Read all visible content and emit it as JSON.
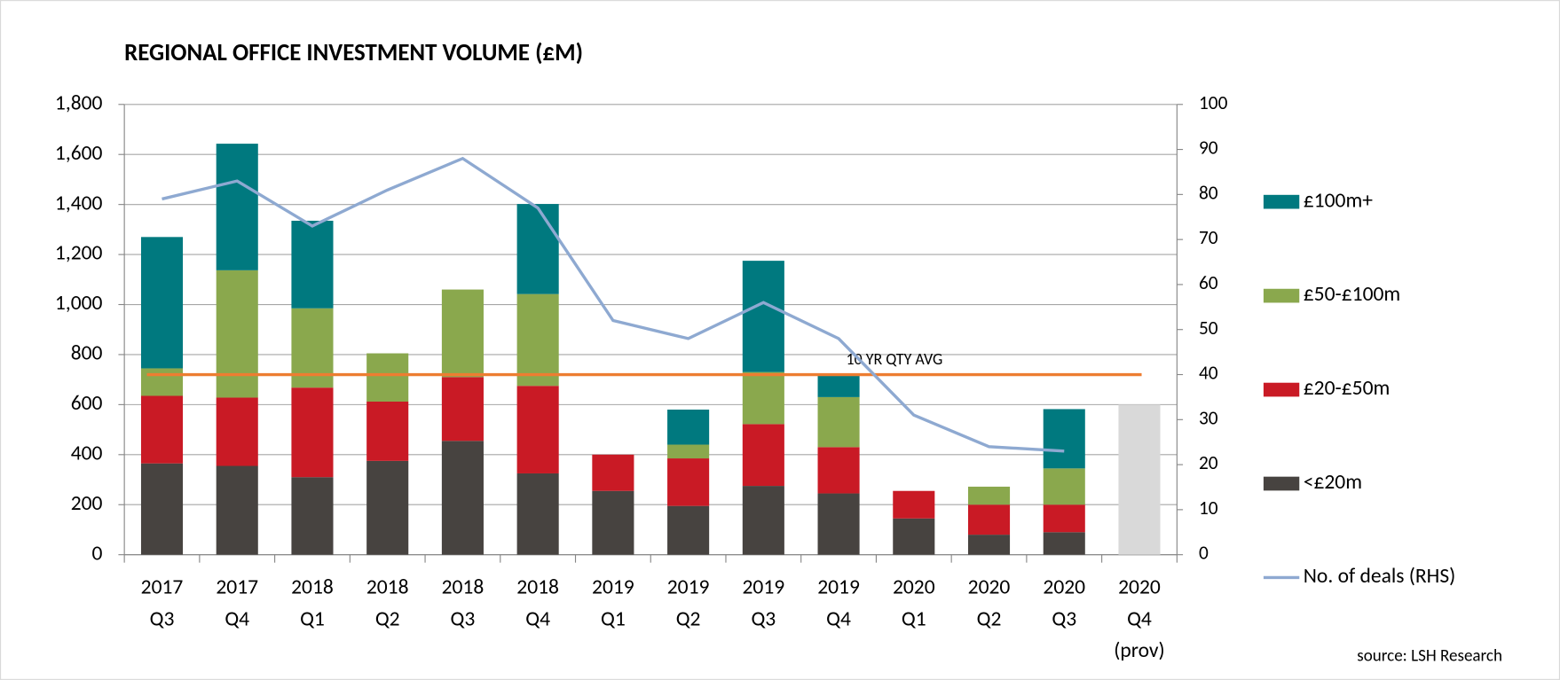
{
  "chart_data": {
    "type": "bar",
    "stacked": true,
    "title": "REGIONAL OFFICE INVESTMENT VOLUME (£M)",
    "categories": [
      [
        "2017",
        "Q3"
      ],
      [
        "2017",
        "Q4"
      ],
      [
        "2018",
        "Q1"
      ],
      [
        "2018",
        "Q2"
      ],
      [
        "2018",
        "Q3"
      ],
      [
        "2018",
        "Q4"
      ],
      [
        "2019",
        "Q1"
      ],
      [
        "2019",
        "Q2"
      ],
      [
        "2019",
        "Q3"
      ],
      [
        "2019",
        "Q4"
      ],
      [
        "2020",
        "Q1"
      ],
      [
        "2020",
        "Q2"
      ],
      [
        "2020",
        "Q3"
      ],
      [
        "2020",
        "Q4",
        "(prov)"
      ]
    ],
    "series": [
      {
        "name": "<£20m",
        "color": "#474340",
        "values": [
          365,
          355,
          310,
          375,
          455,
          325,
          255,
          195,
          275,
          245,
          145,
          80,
          90,
          null
        ]
      },
      {
        "name": "£20-£50m",
        "color": "#c91a25",
        "values": [
          270,
          273,
          358,
          237,
          255,
          350,
          145,
          190,
          247,
          185,
          110,
          120,
          110,
          null
        ]
      },
      {
        "name": "£50-£100m",
        "color": "#8aa84d",
        "values": [
          110,
          509,
          317,
          193,
          350,
          367,
          null,
          55,
          208,
          200,
          null,
          72,
          145,
          null
        ]
      },
      {
        "name": "£100m+",
        "color": "#00797f",
        "values": [
          525,
          506,
          350,
          null,
          null,
          360,
          null,
          140,
          445,
          90,
          null,
          null,
          237,
          null
        ]
      },
      {
        "name": "No. of deals (RHS)",
        "type": "line",
        "axis": "y2",
        "color": "#8ea9d1",
        "values": [
          79,
          83,
          73,
          81,
          88,
          77,
          52,
          48,
          56,
          48,
          31,
          24,
          23,
          null
        ]
      }
    ],
    "provisional_values": [
      null,
      null,
      null,
      null,
      null,
      null,
      null,
      null,
      null,
      null,
      null,
      null,
      null,
      600
    ],
    "provisional_color": "#d9d9d9",
    "reference_line": {
      "label": "10 YR QTY AVG",
      "value": 720,
      "color": "#ed7d31"
    },
    "ylim": [
      0,
      1800
    ],
    "yticks": [
      0,
      200,
      400,
      600,
      800,
      {
        "value": 1000,
        "label": "1,000"
      },
      {
        "value": 1200,
        "label": "1,200"
      },
      {
        "value": 1400,
        "label": "1,400"
      },
      {
        "value": 1600,
        "label": "1,600"
      },
      {
        "value": 1800,
        "label": "1,800"
      }
    ],
    "y2lim": [
      0,
      100
    ],
    "y2ticks": [
      0,
      10,
      20,
      30,
      40,
      50,
      60,
      70,
      80,
      90,
      100
    ],
    "grid": true,
    "legend": "right",
    "source": "source: LSH Research"
  }
}
